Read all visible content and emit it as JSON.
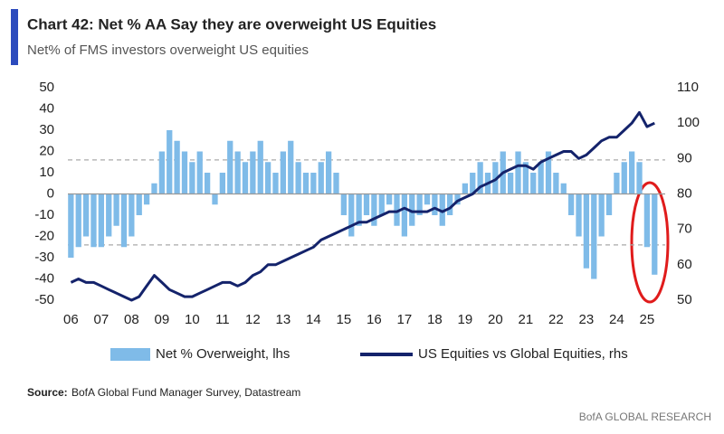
{
  "chart_data": {
    "type": "combo",
    "title": "Chart 42: Net % AA Say they are overweight US Equities",
    "subtitle": "Net% of FMS investors overweight US equities",
    "source_label": "Source:",
    "source": "BofA Global Fund Manager Survey, Datastream",
    "footer": "BofA GLOBAL RESEARCH",
    "x": [
      2006,
      2006.25,
      2006.5,
      2006.75,
      2007,
      2007.25,
      2007.5,
      2007.75,
      2008,
      2008.25,
      2008.5,
      2008.75,
      2009,
      2009.25,
      2009.5,
      2009.75,
      2010,
      2010.25,
      2010.5,
      2010.75,
      2011,
      2011.25,
      2011.5,
      2011.75,
      2012,
      2012.25,
      2012.5,
      2012.75,
      2013,
      2013.25,
      2013.5,
      2013.75,
      2014,
      2014.25,
      2014.5,
      2014.75,
      2015,
      2015.25,
      2015.5,
      2015.75,
      2016,
      2016.25,
      2016.5,
      2016.75,
      2017,
      2017.25,
      2017.5,
      2017.75,
      2018,
      2018.25,
      2018.5,
      2018.75,
      2019,
      2019.25,
      2019.5,
      2019.75,
      2020,
      2020.25,
      2020.5,
      2020.75,
      2021,
      2021.25,
      2021.5,
      2021.75,
      2022,
      2022.25,
      2022.5,
      2022.75,
      2023,
      2023.25,
      2023.5,
      2023.75,
      2024,
      2024.25,
      2024.5,
      2024.75,
      2025,
      2025.25
    ],
    "series": [
      {
        "name": "Net % Overweight, lhs",
        "type": "bar",
        "color": "#7fbbe8",
        "values": [
          -30,
          -25,
          -20,
          -25,
          -25,
          -20,
          -15,
          -25,
          -20,
          -10,
          -5,
          5,
          20,
          30,
          25,
          20,
          15,
          20,
          10,
          -5,
          10,
          25,
          20,
          15,
          20,
          25,
          15,
          10,
          20,
          25,
          15,
          10,
          10,
          15,
          20,
          10,
          -10,
          -20,
          -15,
          -10,
          -15,
          -10,
          -5,
          -15,
          -20,
          -15,
          -10,
          -5,
          -10,
          -15,
          -10,
          -5,
          5,
          10,
          15,
          10,
          15,
          20,
          10,
          20,
          15,
          10,
          15,
          20,
          10,
          5,
          -10,
          -20,
          -35,
          -40,
          -20,
          -10,
          10,
          15,
          20,
          15,
          -25,
          -38
        ]
      },
      {
        "name": "US Equities vs Global Equities, rhs",
        "type": "line",
        "axis": "y2",
        "color": "#14236b",
        "values": [
          55,
          56,
          55,
          55,
          54,
          53,
          52,
          51,
          50,
          51,
          54,
          57,
          55,
          53,
          52,
          51,
          51,
          52,
          53,
          54,
          55,
          55,
          54,
          55,
          57,
          58,
          60,
          60,
          61,
          62,
          63,
          64,
          65,
          67,
          68,
          69,
          70,
          71,
          72,
          72,
          73,
          74,
          75,
          75,
          76,
          75,
          75,
          75,
          76,
          75,
          76,
          78,
          79,
          80,
          82,
          83,
          84,
          86,
          87,
          88,
          88,
          87,
          89,
          90,
          91,
          92,
          92,
          90,
          91,
          93,
          95,
          96,
          96,
          98,
          100,
          103,
          99,
          100
        ]
      }
    ],
    "xlim": [
      2005.9,
      2025.6
    ],
    "xticks": [
      {
        "value": 2006,
        "label": "06"
      },
      {
        "value": 2007,
        "label": "07"
      },
      {
        "value": 2008,
        "label": "08"
      },
      {
        "value": 2009,
        "label": "09"
      },
      {
        "value": 2010,
        "label": "10"
      },
      {
        "value": 2011,
        "label": "11"
      },
      {
        "value": 2012,
        "label": "12"
      },
      {
        "value": 2013,
        "label": "13"
      },
      {
        "value": 2014,
        "label": "14"
      },
      {
        "value": 2015,
        "label": "15"
      },
      {
        "value": 2016,
        "label": "16"
      },
      {
        "value": 2017,
        "label": "17"
      },
      {
        "value": 2018,
        "label": "18"
      },
      {
        "value": 2019,
        "label": "19"
      },
      {
        "value": 2020,
        "label": "20"
      },
      {
        "value": 2021,
        "label": "21"
      },
      {
        "value": 2022,
        "label": "22"
      },
      {
        "value": 2023,
        "label": "23"
      },
      {
        "value": 2024,
        "label": "24"
      },
      {
        "value": 2025,
        "label": "25"
      }
    ],
    "ylim": [
      -50,
      50
    ],
    "yticks": [
      -50,
      -40,
      -30,
      -20,
      -10,
      0,
      10,
      20,
      30,
      40,
      50
    ],
    "y2lim": [
      50,
      110
    ],
    "y2ticks": [
      50,
      60,
      70,
      80,
      90,
      100,
      110
    ],
    "reference_lines": [
      16,
      -24
    ]
  }
}
